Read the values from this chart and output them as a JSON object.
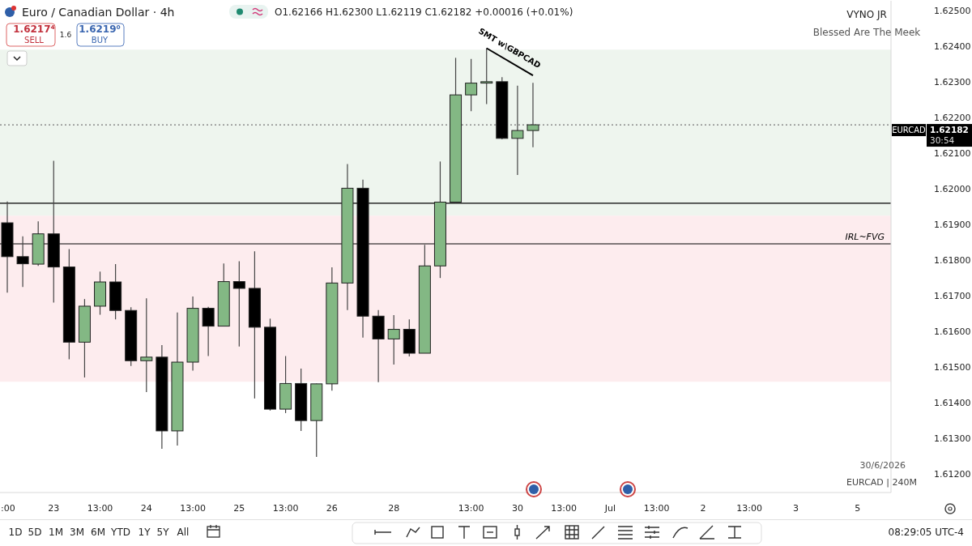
{
  "chart_data": {
    "type": "candlestick",
    "title": "Euro / Canadian Dollar · 4h",
    "subtitle": "O1.62166 H1.62300 L1.62119 C1.62182 +0.00016 (+0.01%)",
    "categories": [
      ":00",
      null,
      null,
      "23",
      null,
      null,
      "13:00",
      null,
      null,
      "24",
      null,
      null,
      "13:00",
      null,
      null,
      "25",
      null,
      null,
      "13:00",
      null,
      null,
      "26",
      null,
      null,
      null,
      "28",
      null,
      null,
      null,
      null,
      "13:00",
      null,
      null,
      "30",
      null,
      null,
      "13:00",
      null,
      null,
      "Jul",
      null,
      null,
      "13:00",
      null,
      null,
      "2",
      null,
      null,
      "13:00",
      null,
      null,
      "3",
      null,
      null,
      null,
      "5",
      null,
      null
    ],
    "ohlc": [
      [
        1.61907,
        1.61967,
        1.61711,
        1.61812
      ],
      [
        1.61812,
        1.61869,
        1.61727,
        1.61792
      ],
      [
        1.61791,
        1.61911,
        1.61786,
        1.61876
      ],
      [
        1.61876,
        1.62081,
        1.61683,
        1.61783
      ],
      [
        1.61783,
        1.61833,
        1.61524,
        1.61572
      ],
      [
        1.61572,
        1.61693,
        1.61473,
        1.61673
      ],
      [
        1.61673,
        1.6177,
        1.61649,
        1.61741
      ],
      [
        1.61741,
        1.61791,
        1.61636,
        1.61661
      ],
      [
        1.61661,
        1.6167,
        1.61505,
        1.6152
      ],
      [
        1.6152,
        1.61695,
        1.61432,
        1.6153
      ],
      [
        1.6153,
        1.61564,
        1.61273,
        1.61323
      ],
      [
        1.61323,
        1.61655,
        1.61282,
        1.61516
      ],
      [
        1.61516,
        1.617,
        1.61492,
        1.61667
      ],
      [
        1.61667,
        1.61671,
        1.61533,
        1.61617
      ],
      [
        1.61617,
        1.61793,
        1.61617,
        1.61742
      ],
      [
        1.61742,
        1.61799,
        1.6156,
        1.61723
      ],
      [
        1.61723,
        1.61827,
        1.61414,
        1.61614
      ],
      [
        1.61614,
        1.61638,
        1.6138,
        1.61384
      ],
      [
        1.61384,
        1.61533,
        1.61373,
        1.61456
      ],
      [
        1.61456,
        1.61498,
        1.61323,
        1.61352
      ],
      [
        1.61352,
        1.61456,
        1.6125,
        1.61455
      ],
      [
        1.61455,
        1.61782,
        1.61436,
        1.61738
      ],
      [
        1.61738,
        1.62072,
        1.61662,
        1.62004
      ],
      [
        1.62004,
        1.62028,
        1.61585,
        1.61645
      ],
      [
        1.61645,
        1.61662,
        1.6146,
        1.61581
      ],
      [
        1.61581,
        1.61648,
        1.61509,
        1.61608
      ],
      [
        1.61608,
        1.61636,
        1.61532,
        1.61541
      ],
      [
        1.61541,
        1.61845,
        1.61541,
        1.61786
      ],
      [
        1.61786,
        1.62079,
        1.61752,
        1.61965
      ],
      [
        1.61965,
        1.6237,
        1.61962,
        1.62266
      ],
      [
        1.62266,
        1.62367,
        1.6222,
        1.62299
      ],
      [
        1.62299,
        1.62397,
        1.6224,
        1.62303
      ],
      [
        1.62303,
        1.62316,
        1.62141,
        1.62144
      ],
      [
        1.62144,
        1.62292,
        1.62041,
        1.62166
      ],
      [
        1.62166,
        1.623,
        1.62119,
        1.62182
      ],
      null,
      null,
      null,
      null,
      null,
      null,
      null,
      null,
      null,
      null,
      null,
      null,
      null,
      null,
      null,
      null,
      null,
      null,
      null,
      null,
      null,
      null,
      null
    ],
    "colors": [
      "#000000",
      "#000000",
      "#83b884",
      "#000000",
      "#000000",
      "#83b884",
      "#83b884",
      "#000000",
      "#000000",
      "#83b884",
      "#000000",
      "#83b884",
      "#83b884",
      "#000000",
      "#83b884",
      "#000000",
      "#000000",
      "#000000",
      "#83b884",
      "#000000",
      "#83b884",
      "#83b884",
      "#83b884",
      "#000000",
      "#000000",
      "#83b884",
      "#000000",
      "#83b884",
      "#83b884",
      "#83b884",
      "#83b884",
      "#83b884",
      "#000000",
      "#83b884",
      "#83b884",
      null,
      null,
      null,
      null,
      null,
      null,
      null,
      null,
      null,
      null,
      null,
      null,
      null,
      null,
      null,
      null,
      null,
      null,
      null,
      null,
      null,
      null,
      null
    ],
    "ylim": [
      1.6115,
      1.6253
    ],
    "yticks": [
      {
        "value": 1.625,
        "label": "1.62500"
      },
      {
        "value": 1.624,
        "label": "1.62400"
      },
      {
        "value": 1.623,
        "label": "1.62300"
      },
      {
        "value": 1.622,
        "label": "1.62200"
      },
      {
        "value": 1.621,
        "label": "1.62100"
      },
      {
        "value": 1.62,
        "label": "1.62000"
      },
      {
        "value": 1.619,
        "label": "1.61900"
      },
      {
        "value": 1.618,
        "label": "1.61800"
      },
      {
        "value": 1.617,
        "label": "1.61700"
      },
      {
        "value": 1.616,
        "label": "1.61600"
      },
      {
        "value": 1.615,
        "label": "1.61500"
      },
      {
        "value": 1.614,
        "label": "1.61400"
      },
      {
        "value": 1.613,
        "label": "1.61300"
      },
      {
        "value": 1.612,
        "label": "1.61200"
      }
    ],
    "ref_lines": [
      {
        "axis": "y",
        "value": 1.61962,
        "color": "#000000"
      },
      {
        "axis": "y",
        "value": 1.61848,
        "label": "IRL~FVG",
        "color": "#000000"
      },
      {
        "axis": "y",
        "value": 1.62182,
        "label": "EURCAD",
        "color": "#777777",
        "line_style": "dotted"
      }
    ],
    "bands": [
      {
        "axis": "y",
        "from": 1.61927,
        "to": 1.62393,
        "color": "#eef5ee"
      },
      {
        "axis": "y",
        "from": 1.61461,
        "to": 1.61927,
        "color": "#fdecee"
      }
    ],
    "annotations": [
      "1.6217⁴",
      "SELL",
      "1.6",
      "1.6219⁰",
      "BUY",
      "VYNO JR",
      "Blessed Are The Meek",
      "SMT w\\GBPCAD",
      "30:54",
      "30/6/2026",
      "EURCAD | 240M",
      "1.62182",
      "1D",
      "5D",
      "1M",
      "3M",
      "6M",
      "YTD",
      "1Y",
      "5Y",
      "All",
      "08:29:05 UTC-4"
    ]
  }
}
